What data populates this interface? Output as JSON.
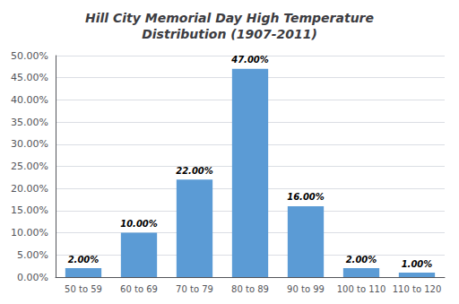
{
  "chart_data": {
    "type": "bar",
    "title": "Hill City Memorial Day High Temperature\nDistribution (1907-2011)",
    "categories": [
      "50 to 59",
      "60 to 69",
      "70 to 79",
      "80 to 89",
      "90 to 99",
      "100 to 110",
      "110 to 120"
    ],
    "values": [
      2.0,
      10.0,
      22.0,
      47.0,
      16.0,
      2.0,
      1.0
    ],
    "value_labels": [
      "2.00%",
      "10.00%",
      "22.00%",
      "47.00%",
      "16.00%",
      "2.00%",
      "1.00%"
    ],
    "data_labels": true,
    "color": "#5b9bd5",
    "ylim": [
      0,
      50
    ],
    "yticks": [
      {
        "value": 0,
        "label": "0.00%"
      },
      {
        "value": 5,
        "label": "5.00%"
      },
      {
        "value": 10,
        "label": "10.00%"
      },
      {
        "value": 15,
        "label": "15.00%"
      },
      {
        "value": 20,
        "label": "20.00%"
      },
      {
        "value": 25,
        "label": "25.00%"
      },
      {
        "value": 30,
        "label": "30.00%"
      },
      {
        "value": 35,
        "label": "35.00%"
      },
      {
        "value": 40,
        "label": "40.00%"
      },
      {
        "value": 45,
        "label": "45.00%"
      },
      {
        "value": 50,
        "label": "50.00%"
      }
    ],
    "grid": true
  }
}
